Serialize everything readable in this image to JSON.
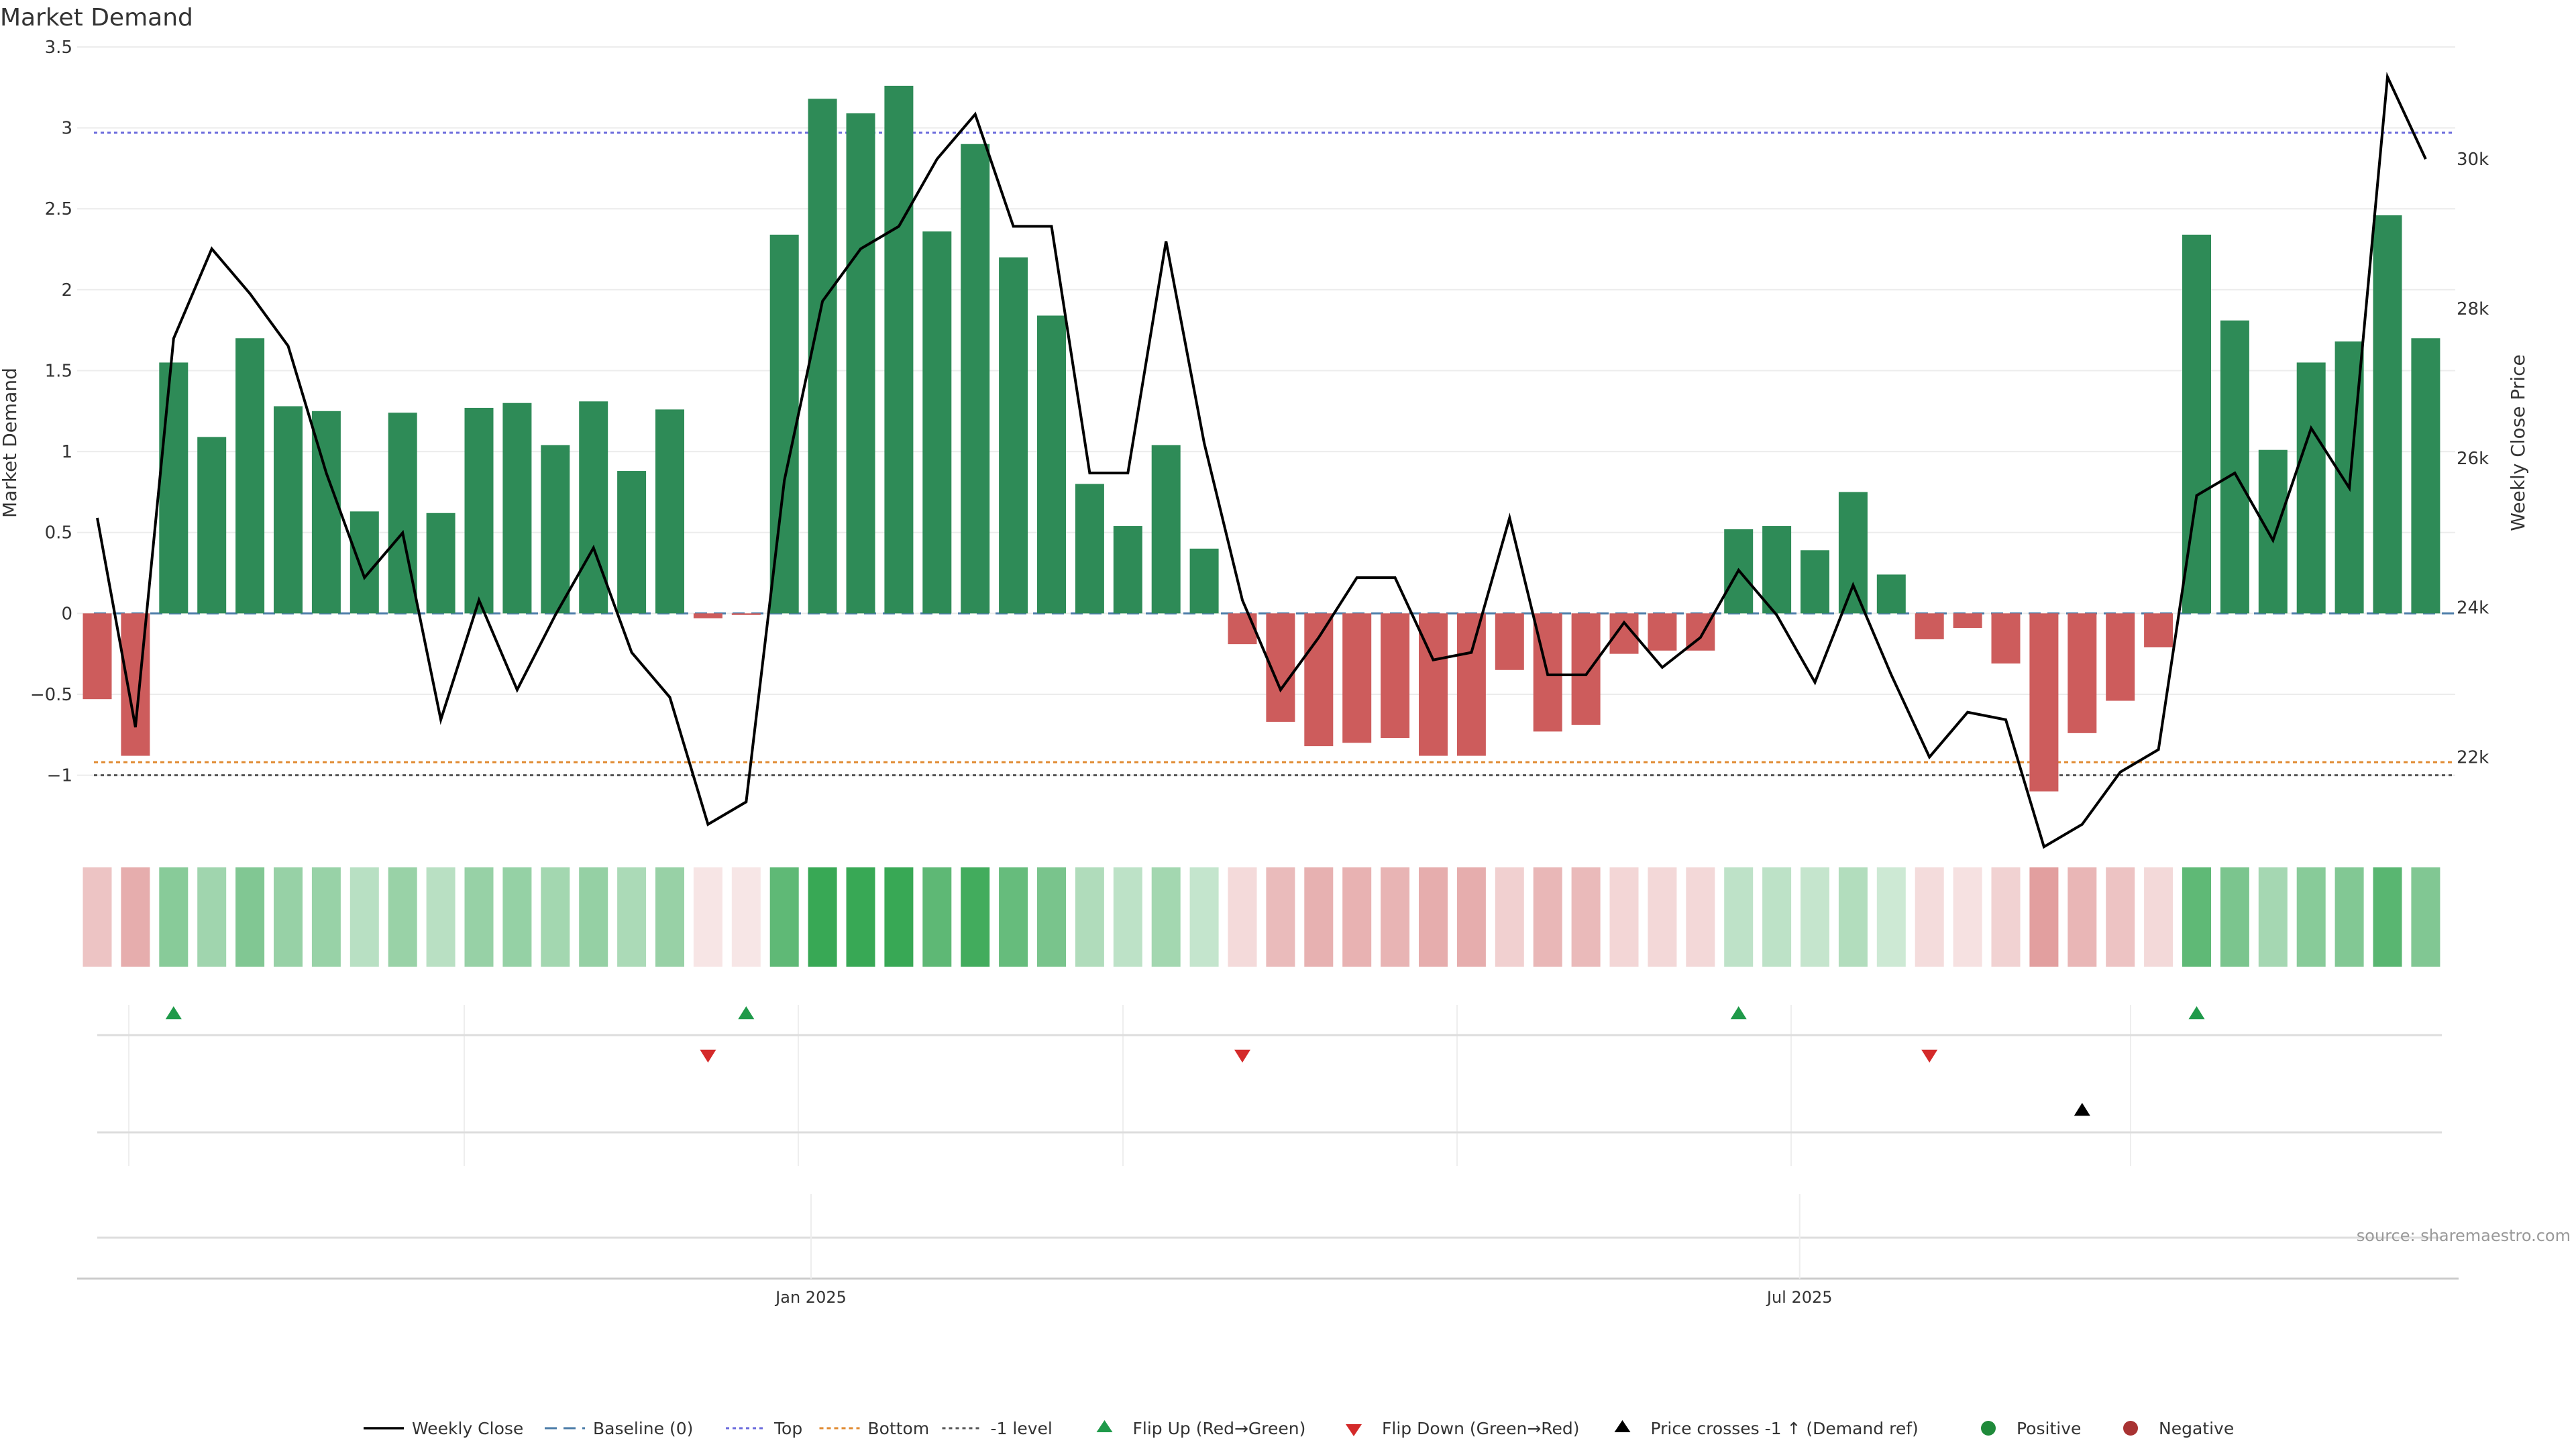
{
  "chart_data": {
    "type": "bar",
    "title": "Market Demand",
    "ylabel": "Market Demand",
    "y2label": "Weekly Close Price",
    "ylim": [
      -1.35,
      3.5
    ],
    "y2lim": [
      21000,
      31500
    ],
    "yticks": [
      -1,
      -0.5,
      0,
      0.5,
      1,
      1.5,
      2,
      2.5,
      3,
      3.5
    ],
    "yticklabels": [
      "−1",
      "−0.5",
      "0",
      "0.5",
      "1",
      "1.5",
      "2",
      "2.5",
      "3",
      "3.5"
    ],
    "y2ticks": [
      22000,
      24000,
      26000,
      28000,
      30000
    ],
    "y2ticklabels": [
      "22k",
      "24k",
      "26k",
      "28k",
      "30k"
    ],
    "xticklabels": [
      {
        "label": "Jan 2025",
        "week": 18.7
      },
      {
        "label": "Jul 2025",
        "week": 44.6
      }
    ],
    "reference_lines": {
      "baseline": 0,
      "top": 2.97,
      "bottom": -0.92,
      "minus_one": -1
    },
    "demand": [
      -0.53,
      -0.88,
      1.55,
      1.09,
      1.7,
      1.28,
      1.25,
      0.63,
      1.24,
      0.62,
      1.27,
      1.3,
      1.04,
      1.31,
      0.88,
      1.26,
      -0.03,
      -0.01,
      2.34,
      3.18,
      3.09,
      3.26,
      2.36,
      2.9,
      2.2,
      1.84,
      0.8,
      0.54,
      1.04,
      0.4,
      -0.19,
      -0.67,
      -0.82,
      -0.8,
      -0.77,
      -0.88,
      -0.88,
      -0.35,
      -0.73,
      -0.69,
      -0.25,
      -0.23,
      -0.23,
      0.52,
      0.54,
      0.39,
      0.75,
      0.24,
      -0.16,
      -0.09,
      -0.31,
      -1.1,
      -0.74,
      -0.54,
      -0.21,
      2.34,
      1.81,
      1.01,
      1.55,
      1.68,
      2.46,
      1.7
    ],
    "price": [
      25200,
      22400,
      27600,
      28800,
      28200,
      27500,
      25800,
      24400,
      25000,
      22500,
      24100,
      22900,
      23900,
      24800,
      23400,
      22800,
      21100,
      21400,
      25700,
      28100,
      28800,
      29100,
      30000,
      30600,
      29100,
      29100,
      25800,
      25800,
      28900,
      26200,
      24100,
      22900,
      23600,
      24400,
      24400,
      23300,
      23400,
      25200,
      23100,
      23100,
      23800,
      23200,
      23600,
      24500,
      23900,
      23000,
      24300,
      23100,
      22000,
      22600,
      22500,
      20800,
      21100,
      21800,
      22100,
      25500,
      25800,
      24900,
      26400,
      25600,
      31100,
      30000
    ],
    "flip_up_weeks": [
      2,
      17,
      43,
      55
    ],
    "flip_down_weeks": [
      16,
      30,
      48
    ],
    "price_cross_weeks": [
      52
    ],
    "legend": [
      "Weekly Close",
      "Baseline (0)",
      "Top",
      "Bottom",
      "-1 level",
      "Flip Up (Red→Green)",
      "Flip Down (Green→Red)",
      "Price crosses -1 ↑ (Demand ref)",
      "Positive",
      "Negative"
    ],
    "legend_position": "bottom-center",
    "source": "source: sharemaestro.com"
  },
  "colors": {
    "positive": "#2e8b57",
    "negative": "#cd5c5c",
    "price_line": "#000000",
    "baseline": "#4a7ba7",
    "top": "#6a6adc",
    "bottom": "#e08a30",
    "minus_one": "#555555",
    "flip_up": "#1f9a4a",
    "flip_down": "#d42a2a",
    "price_cross": "#000000",
    "positive_dot": "#1f8a3a",
    "negative_dot": "#a83232"
  }
}
